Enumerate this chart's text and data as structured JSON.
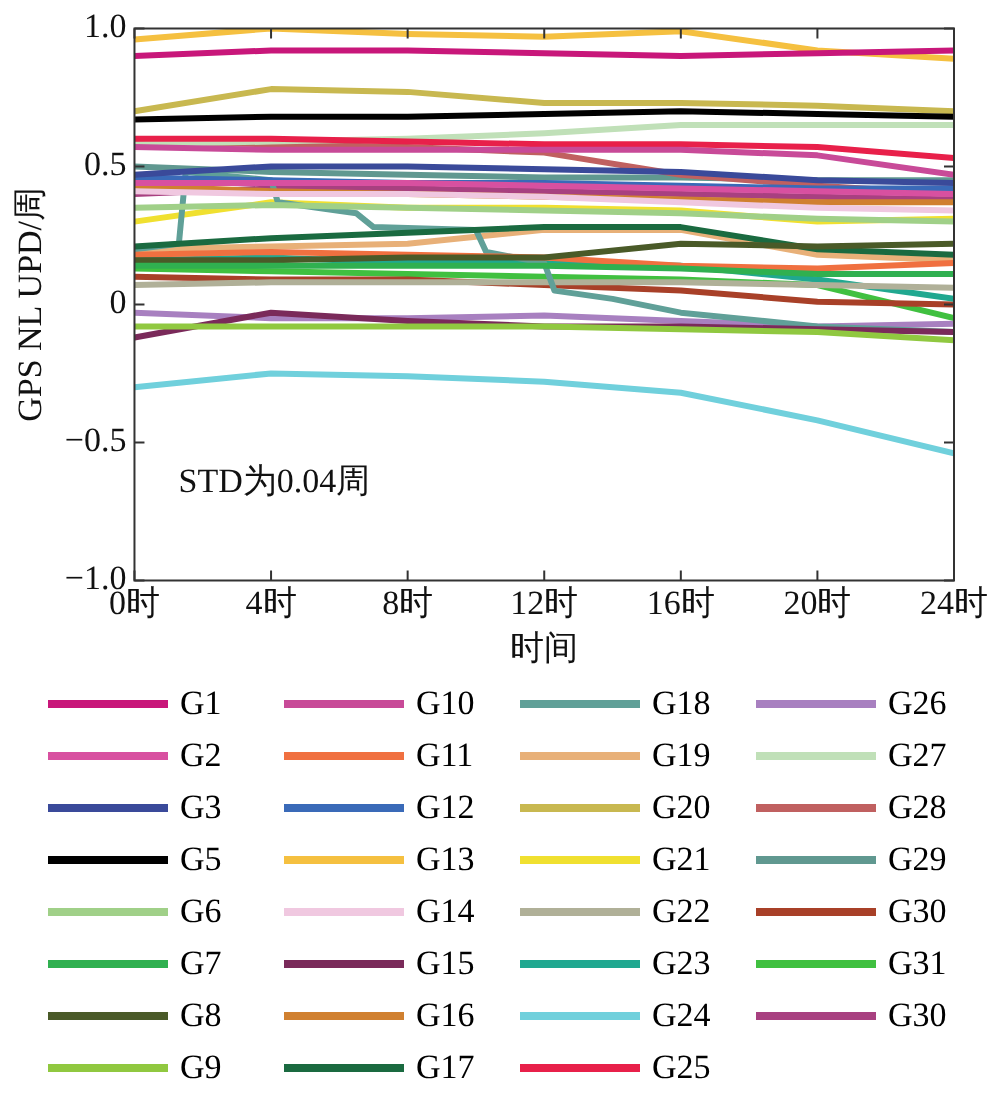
{
  "chart_data": {
    "type": "line",
    "xlabel": "时间",
    "ylabel": "GPS NL UPD/周",
    "annotations": [
      "STD为0.04周"
    ],
    "x": [
      0,
      4,
      8,
      12,
      16,
      20,
      24
    ],
    "xlim": [
      0,
      24
    ],
    "xticks": [
      {
        "value": 0,
        "label": "0时"
      },
      {
        "value": 4,
        "label": "4时"
      },
      {
        "value": 8,
        "label": "8时"
      },
      {
        "value": 12,
        "label": "12时"
      },
      {
        "value": 16,
        "label": "16时"
      },
      {
        "value": 20,
        "label": "20时"
      },
      {
        "value": 24,
        "label": "24时"
      }
    ],
    "ylim": [
      -1,
      1
    ],
    "yticks": [
      {
        "value": -1,
        "label": "−1.0"
      },
      {
        "value": -0.5,
        "label": "−0.5"
      },
      0,
      0.5,
      {
        "value": 1,
        "label": "1.0"
      }
    ],
    "grid": false,
    "legend": "bottom",
    "marker": "none",
    "line_style": "solid",
    "series": [
      {
        "name": "G1",
        "color": "#c8177a",
        "values": [
          0.9,
          0.92,
          0.92,
          0.91,
          0.9,
          0.91,
          0.92
        ]
      },
      {
        "name": "G2",
        "color": "#d850a0",
        "values": [
          0.44,
          0.44,
          0.44,
          0.43,
          0.42,
          0.41,
          0.4
        ]
      },
      {
        "name": "G3",
        "color": "#3a4a9a",
        "values": [
          0.47,
          0.5,
          0.5,
          0.49,
          0.48,
          0.45,
          0.44
        ]
      },
      {
        "name": "G5",
        "color": "#000000",
        "values": [
          0.67,
          0.68,
          0.68,
          0.69,
          0.7,
          0.69,
          0.68
        ]
      },
      {
        "name": "G6",
        "color": "#a0d088",
        "values": [
          0.35,
          0.36,
          0.35,
          0.34,
          0.33,
          0.31,
          0.3
        ]
      },
      {
        "name": "G7",
        "color": "#30b050",
        "values": [
          0.14,
          0.14,
          0.14,
          0.14,
          0.13,
          0.11,
          0.11
        ]
      },
      {
        "name": "G8",
        "color": "#4a5a28",
        "values": [
          0.16,
          0.16,
          0.17,
          0.17,
          0.22,
          0.21,
          0.22
        ]
      },
      {
        "name": "G9",
        "color": "#90c840",
        "values": [
          -0.08,
          -0.08,
          -0.08,
          -0.08,
          -0.09,
          -0.1,
          -0.13
        ]
      },
      {
        "name": "G10",
        "color": "#c84a98",
        "values": [
          0.57,
          0.56,
          0.56,
          0.56,
          0.56,
          0.54,
          0.47
        ]
      },
      {
        "name": "G11",
        "color": "#f07040",
        "values": [
          0.18,
          0.19,
          0.18,
          0.17,
          0.14,
          0.13,
          0.15
        ]
      },
      {
        "name": "G12",
        "color": "#3a6ab8",
        "values": [
          0.46,
          0.45,
          0.44,
          0.44,
          0.43,
          0.42,
          0.42
        ]
      },
      {
        "name": "G13",
        "color": "#f5c040",
        "values": [
          0.96,
          1.0,
          0.98,
          0.97,
          0.99,
          0.92,
          0.89
        ]
      },
      {
        "name": "G14",
        "color": "#f0c8e0",
        "values": [
          0.41,
          0.4,
          0.4,
          0.39,
          0.37,
          0.35,
          0.34
        ]
      },
      {
        "name": "G15",
        "color": "#7a2a5a",
        "values": [
          -0.12,
          -0.03,
          -0.06,
          -0.08,
          -0.08,
          -0.09,
          -0.1
        ]
      },
      {
        "name": "G16",
        "color": "#d08030",
        "values": [
          0.43,
          0.41,
          0.4,
          0.39,
          0.38,
          0.37,
          0.37
        ]
      },
      {
        "name": "G17",
        "color": "#1a6a40",
        "values": [
          0.21,
          0.24,
          0.26,
          0.28,
          0.28,
          0.2,
          0.18
        ]
      },
      {
        "name": "G18",
        "color": "#60a098",
        "x": [
          0,
          1.3,
          1.5,
          4,
          4.2,
          6.5,
          7,
          10,
          10.3,
          12,
          12.3,
          14,
          16,
          20,
          24
        ],
        "values": [
          0.2,
          0.22,
          0.48,
          0.45,
          0.37,
          0.33,
          0.28,
          0.27,
          0.19,
          0.15,
          0.05,
          0.02,
          -0.03,
          -0.08,
          -0.1
        ]
      },
      {
        "name": "G19",
        "color": "#e8b078",
        "values": [
          0.2,
          0.21,
          0.22,
          0.27,
          0.27,
          0.18,
          0.16
        ]
      },
      {
        "name": "G20",
        "color": "#c8b850",
        "values": [
          0.7,
          0.78,
          0.77,
          0.73,
          0.73,
          0.72,
          0.7
        ]
      },
      {
        "name": "G21",
        "color": "#f0e030",
        "values": [
          0.3,
          0.37,
          0.35,
          0.35,
          0.34,
          0.3,
          0.31
        ]
      },
      {
        "name": "G22",
        "color": "#b0b098",
        "values": [
          0.07,
          0.08,
          0.08,
          0.08,
          0.08,
          0.07,
          0.06
        ]
      },
      {
        "name": "G23",
        "color": "#20a890",
        "values": [
          0.16,
          0.17,
          0.15,
          0.15,
          0.14,
          0.09,
          0.02
        ]
      },
      {
        "name": "G24",
        "color": "#70d0dc",
        "values": [
          -0.3,
          -0.25,
          -0.26,
          -0.28,
          -0.32,
          -0.42,
          -0.54
        ]
      },
      {
        "name": "G25",
        "color": "#e8204a",
        "values": [
          0.6,
          0.6,
          0.59,
          0.58,
          0.58,
          0.57,
          0.53
        ]
      },
      {
        "name": "G26",
        "color": "#a880c0",
        "values": [
          -0.03,
          -0.05,
          -0.05,
          -0.04,
          -0.06,
          -0.08,
          -0.07
        ]
      },
      {
        "name": "G27",
        "color": "#c0e0b8",
        "values": [
          0.58,
          0.59,
          0.6,
          0.62,
          0.65,
          0.65,
          0.65
        ]
      },
      {
        "name": "G28",
        "color": "#c06060",
        "values": [
          0.59,
          0.58,
          0.57,
          0.55,
          0.47,
          0.43,
          0.4
        ]
      },
      {
        "name": "G29",
        "color": "#609890",
        "values": [
          0.5,
          0.48,
          0.47,
          0.46,
          0.46,
          0.45,
          0.45
        ]
      },
      {
        "name": "G30",
        "color": "#a84028",
        "values": [
          0.1,
          0.09,
          0.09,
          0.07,
          0.05,
          0.01,
          0.0
        ]
      },
      {
        "name": "G31",
        "color": "#40c040",
        "values": [
          0.13,
          0.12,
          0.11,
          0.1,
          0.09,
          0.07,
          -0.05
        ]
      },
      {
        "name": "G30",
        "color": "#a84080",
        "values": [
          0.4,
          0.42,
          0.42,
          0.41,
          0.4,
          0.39,
          0.38
        ]
      }
    ]
  }
}
